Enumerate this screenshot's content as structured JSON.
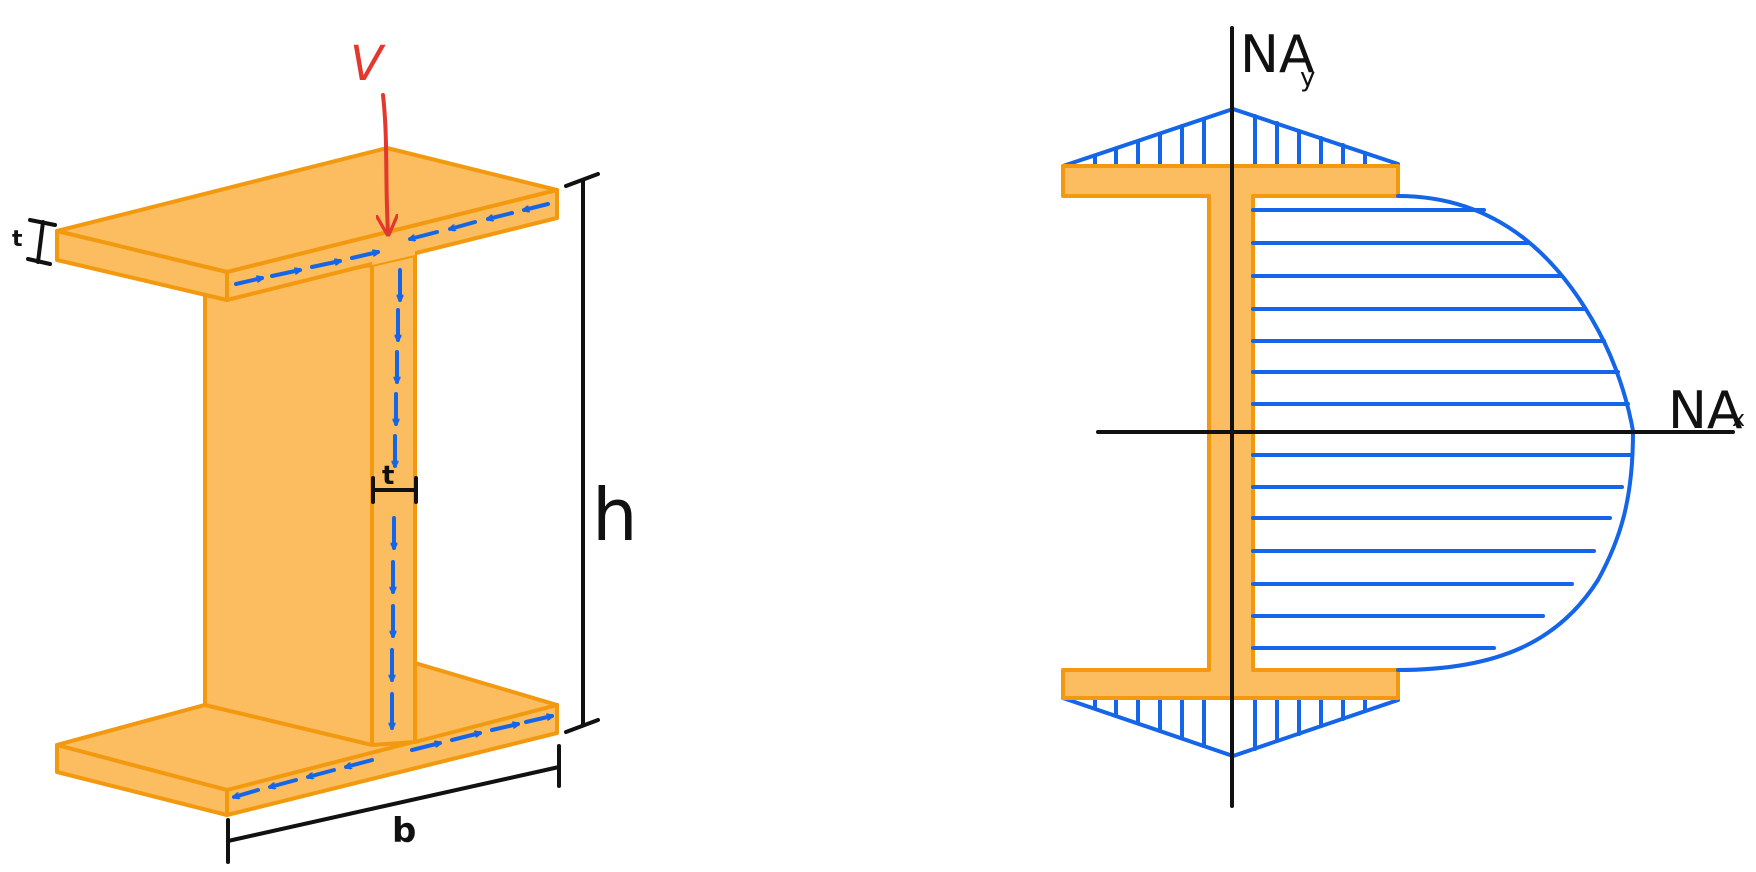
{
  "diagram": {
    "left_figure": {
      "load_label": "V",
      "flange_thickness_label": "t",
      "web_thickness_label": "t",
      "height_label": "h",
      "width_label": "b"
    },
    "right_figure": {
      "axis_y_label": "NA",
      "axis_y_subscript": "y",
      "axis_x_label": "NA",
      "axis_x_subscript": "x"
    },
    "colors": {
      "beam_fill": "#fbbd60",
      "beam_stroke": "#f2990f",
      "flow_arrows": "#1565e8",
      "load_arrow": "#e2382d",
      "dimension_lines": "#111111"
    }
  }
}
